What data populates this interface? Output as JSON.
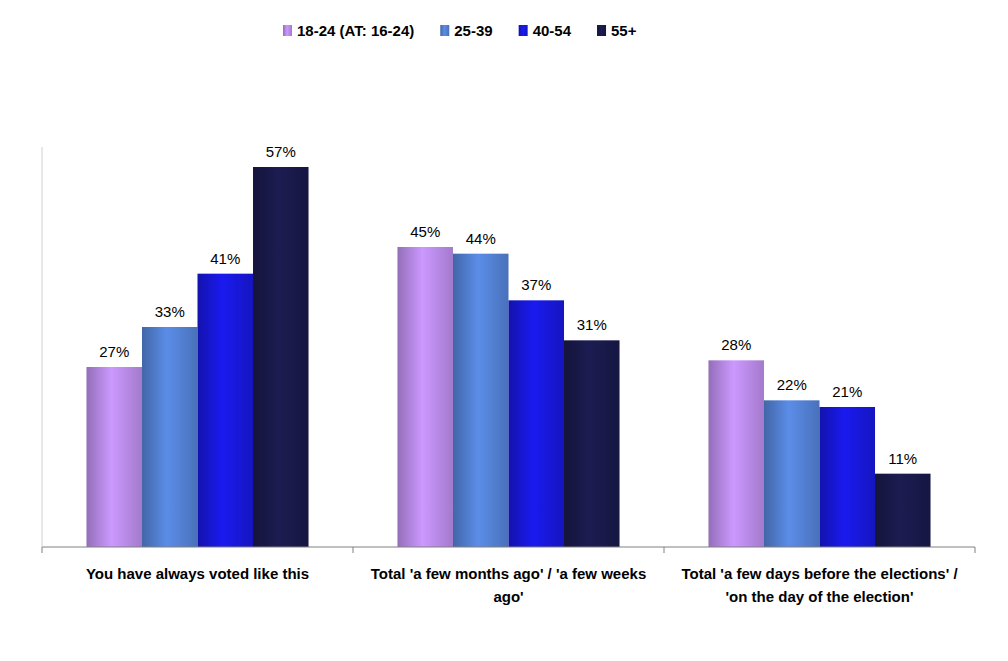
{
  "chart_data": {
    "type": "bar",
    "categories": [
      "You have always voted like this",
      "Total 'a few months ago' / 'a few weeks ago'",
      "Total 'a few days before the elections' / 'on the day of the election'"
    ],
    "series": [
      {
        "name": "18-24 (AT: 16-24)",
        "color": "#cc99ff",
        "values": [
          27,
          45,
          28
        ],
        "value_labels": [
          "27%",
          "45%",
          "28%"
        ]
      },
      {
        "name": "25-39",
        "color": "#5b8de8",
        "values": [
          33,
          44,
          22
        ],
        "value_labels": [
          "33%",
          "44%",
          "22%"
        ]
      },
      {
        "name": "40-54",
        "color": "#1a1af0",
        "values": [
          41,
          37,
          21
        ],
        "value_labels": [
          "41%",
          "37%",
          "21%"
        ]
      },
      {
        "name": "55+",
        "color": "#1c1c52",
        "values": [
          57,
          31,
          11
        ],
        "value_labels": [
          "57%",
          "31%",
          "11%"
        ]
      }
    ],
    "ylim": [
      0,
      60
    ],
    "tick_labels": "x",
    "data_labels": true,
    "legend": "top",
    "grid": false
  }
}
